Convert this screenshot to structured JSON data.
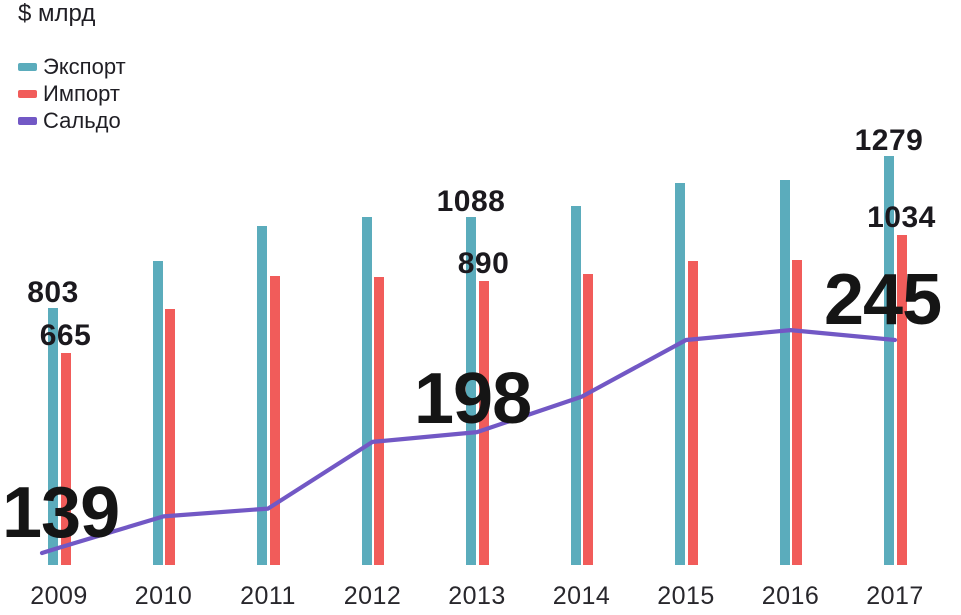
{
  "title": "$ млрд",
  "legend": {
    "items": [
      {
        "label": "Экспорт",
        "color": "#5BACBC"
      },
      {
        "label": "Импорт",
        "color": "#F15C5A"
      },
      {
        "label": "Сальдо",
        "color": "#7258C5"
      }
    ]
  },
  "chart_data": {
    "type": "bar",
    "subtype": "grouped-bars-with-line-overlay",
    "title": "$ млрд",
    "ylabel": "$ млрд",
    "categories": [
      "2009",
      "2010",
      "2011",
      "2012",
      "2013",
      "2014",
      "2015",
      "2016",
      "2017"
    ],
    "series": [
      {
        "name": "Экспорт",
        "type": "bar",
        "color": "#5BACBC",
        "values": [
          803,
          950,
          1060,
          1090,
          1088,
          1125,
          1195,
          1205,
          1279
        ]
      },
      {
        "name": "Импорт",
        "type": "bar",
        "color": "#F15C5A",
        "values": [
          665,
          800,
          905,
          900,
          890,
          910,
          950,
          955,
          1034
        ]
      },
      {
        "name": "Сальдо",
        "type": "line",
        "color": "#7258C5",
        "values": [
          139,
          155,
          159,
          193,
          198,
          216,
          245,
          250,
          245
        ]
      }
    ],
    "value_labels": {
      "years": [
        "2009",
        "2013",
        "2017"
      ],
      "export": [
        "803",
        "1088",
        "1279"
      ],
      "import": [
        "665",
        "890",
        "1034"
      ],
      "balance": [
        "139",
        "198",
        "245"
      ]
    },
    "axes": {
      "y_axis_visible": false,
      "x_tick_labels_visible": true,
      "grid": false
    },
    "legend_position": "top-left",
    "line_uses_secondary_exaggerated_scale": true,
    "unlabeled_values_estimated_from_pixels": true
  }
}
